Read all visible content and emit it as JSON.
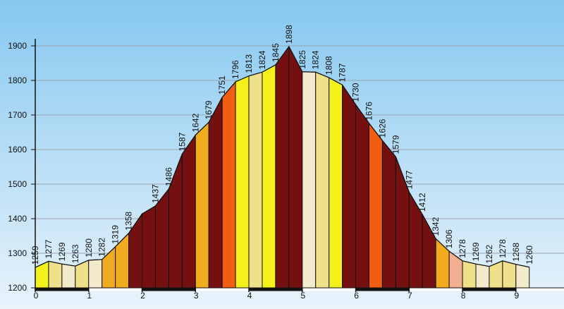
{
  "chart_data": {
    "type": "area",
    "title": "",
    "xlabel": "",
    "ylabel": "",
    "xlim": [
      0,
      9.9
    ],
    "ylim": [
      1200,
      1900
    ],
    "y_ticks": [
      1200,
      1300,
      1400,
      1500,
      1600,
      1700,
      1800,
      1900
    ],
    "x_ticks": [
      0,
      1,
      2,
      3,
      4,
      5,
      6,
      7,
      8,
      9
    ],
    "grid": "horizontal",
    "background": "sky-gradient",
    "points": [
      {
        "x": 0.0,
        "y": 1259,
        "label": "1259"
      },
      {
        "x": 0.25,
        "y": 1277,
        "label": "1277"
      },
      {
        "x": 0.5,
        "y": 1269,
        "label": "1269"
      },
      {
        "x": 0.75,
        "y": 1263,
        "label": "1263"
      },
      {
        "x": 1.0,
        "y": 1280,
        "label": "1280"
      },
      {
        "x": 1.25,
        "y": 1282,
        "label": "1282"
      },
      {
        "x": 1.5,
        "y": 1319,
        "label": "1319"
      },
      {
        "x": 1.75,
        "y": 1358,
        "label": "1358"
      },
      {
        "x": 2.0,
        "y": 1414
      },
      {
        "x": 2.25,
        "y": 1437,
        "label": "1437"
      },
      {
        "x": 2.5,
        "y": 1486,
        "label": "1486"
      },
      {
        "x": 2.75,
        "y": 1587,
        "label": "1587"
      },
      {
        "x": 3.0,
        "y": 1642,
        "label": "1642"
      },
      {
        "x": 3.25,
        "y": 1679,
        "label": "1679"
      },
      {
        "x": 3.5,
        "y": 1751,
        "label": "1751"
      },
      {
        "x": 3.75,
        "y": 1796,
        "label": "1796"
      },
      {
        "x": 4.0,
        "y": 1813,
        "label": "1813"
      },
      {
        "x": 4.25,
        "y": 1824,
        "label": "1824"
      },
      {
        "x": 4.5,
        "y": 1845,
        "label": "1845"
      },
      {
        "x": 4.75,
        "y": 1898,
        "label": "1898"
      },
      {
        "x": 5.0,
        "y": 1825,
        "label": "1825"
      },
      {
        "x": 5.25,
        "y": 1824,
        "label": "1824"
      },
      {
        "x": 5.5,
        "y": 1808,
        "label": "1808"
      },
      {
        "x": 5.75,
        "y": 1787,
        "label": "1787"
      },
      {
        "x": 6.0,
        "y": 1730,
        "label": "1730"
      },
      {
        "x": 6.25,
        "y": 1676,
        "label": "1676"
      },
      {
        "x": 6.5,
        "y": 1626,
        "label": "1626"
      },
      {
        "x": 6.75,
        "y": 1579,
        "label": "1579"
      },
      {
        "x": 7.0,
        "y": 1477,
        "label": "1477"
      },
      {
        "x": 7.25,
        "y": 1412,
        "label": "1412"
      },
      {
        "x": 7.5,
        "y": 1342,
        "label": "1342"
      },
      {
        "x": 7.75,
        "y": 1306,
        "label": "1306"
      },
      {
        "x": 8.0,
        "y": 1278,
        "label": "1278"
      },
      {
        "x": 8.25,
        "y": 1269,
        "label": "1269"
      },
      {
        "x": 8.5,
        "y": 1262,
        "label": "1262"
      },
      {
        "x": 8.75,
        "y": 1278,
        "label": "1278"
      },
      {
        "x": 9.0,
        "y": 1268,
        "label": "1268"
      },
      {
        "x": 9.25,
        "y": 1260,
        "label": "1260"
      }
    ],
    "segments": [
      {
        "x0": 0.0,
        "x1": 0.25,
        "color": "#f3f01b"
      },
      {
        "x0": 0.25,
        "x1": 0.5,
        "color": "#efe08a"
      },
      {
        "x0": 0.5,
        "x1": 0.75,
        "color": "#f3eacc"
      },
      {
        "x0": 0.75,
        "x1": 1.0,
        "color": "#efe08a"
      },
      {
        "x0": 1.0,
        "x1": 1.25,
        "color": "#f3eacc"
      },
      {
        "x0": 1.25,
        "x1": 1.5,
        "color": "#f1ab1e"
      },
      {
        "x0": 1.5,
        "x1": 1.75,
        "color": "#f1ab1e"
      },
      {
        "x0": 1.75,
        "x1": 2.0,
        "color": "#741010"
      },
      {
        "x0": 2.0,
        "x1": 2.25,
        "color": "#741010"
      },
      {
        "x0": 2.25,
        "x1": 2.5,
        "color": "#741010"
      },
      {
        "x0": 2.5,
        "x1": 2.75,
        "color": "#741010"
      },
      {
        "x0": 2.75,
        "x1": 3.0,
        "color": "#741010"
      },
      {
        "x0": 3.0,
        "x1": 3.25,
        "color": "#f1ab1e"
      },
      {
        "x0": 3.25,
        "x1": 3.5,
        "color": "#741010"
      },
      {
        "x0": 3.5,
        "x1": 3.75,
        "color": "#f15d12"
      },
      {
        "x0": 3.75,
        "x1": 4.0,
        "color": "#f3f01b"
      },
      {
        "x0": 4.0,
        "x1": 4.25,
        "color": "#efe08a"
      },
      {
        "x0": 4.25,
        "x1": 4.5,
        "color": "#f3f01b"
      },
      {
        "x0": 4.5,
        "x1": 4.75,
        "color": "#741010"
      },
      {
        "x0": 4.75,
        "x1": 5.0,
        "color": "#741010"
      },
      {
        "x0": 5.0,
        "x1": 5.25,
        "color": "#f3eacc"
      },
      {
        "x0": 5.25,
        "x1": 5.5,
        "color": "#efe08a"
      },
      {
        "x0": 5.5,
        "x1": 5.75,
        "color": "#f3f01b"
      },
      {
        "x0": 5.75,
        "x1": 6.0,
        "color": "#741010"
      },
      {
        "x0": 6.0,
        "x1": 6.25,
        "color": "#741010"
      },
      {
        "x0": 6.25,
        "x1": 6.5,
        "color": "#f15d12"
      },
      {
        "x0": 6.5,
        "x1": 6.75,
        "color": "#741010"
      },
      {
        "x0": 6.75,
        "x1": 7.0,
        "color": "#741010"
      },
      {
        "x0": 7.0,
        "x1": 7.25,
        "color": "#741010"
      },
      {
        "x0": 7.25,
        "x1": 7.5,
        "color": "#741010"
      },
      {
        "x0": 7.5,
        "x1": 7.75,
        "color": "#f1ab1e"
      },
      {
        "x0": 7.75,
        "x1": 8.0,
        "color": "#f3ad8f"
      },
      {
        "x0": 8.0,
        "x1": 8.25,
        "color": "#efe08a"
      },
      {
        "x0": 8.25,
        "x1": 8.5,
        "color": "#f3eacc"
      },
      {
        "x0": 8.5,
        "x1": 8.75,
        "color": "#efe08a"
      },
      {
        "x0": 8.75,
        "x1": 9.0,
        "color": "#efe08a"
      },
      {
        "x0": 9.0,
        "x1": 9.25,
        "color": "#f3eacc"
      }
    ],
    "km_bar": [
      {
        "x0": 0.0,
        "x1": 1.0,
        "color": "#111111"
      },
      {
        "x0": 1.0,
        "x1": 2.0,
        "color": "#ffffff"
      },
      {
        "x0": 2.0,
        "x1": 3.0,
        "color": "#111111"
      },
      {
        "x0": 3.0,
        "x1": 4.0,
        "color": "#ffffff"
      },
      {
        "x0": 4.0,
        "x1": 5.0,
        "color": "#111111"
      },
      {
        "x0": 5.0,
        "x1": 6.0,
        "color": "#ffffff"
      },
      {
        "x0": 6.0,
        "x1": 7.0,
        "color": "#111111"
      },
      {
        "x0": 7.0,
        "x1": 8.0,
        "color": "#ffffff"
      },
      {
        "x0": 8.0,
        "x1": 9.0,
        "color": "#111111"
      },
      {
        "x0": 9.0,
        "x1": 9.9,
        "color": "#ffffff"
      }
    ],
    "colors": {
      "sky_top": "#86c8f0",
      "sky_bottom": "#e8f3fb",
      "gridline": "#9aa3ad",
      "outline": "#111111"
    }
  }
}
